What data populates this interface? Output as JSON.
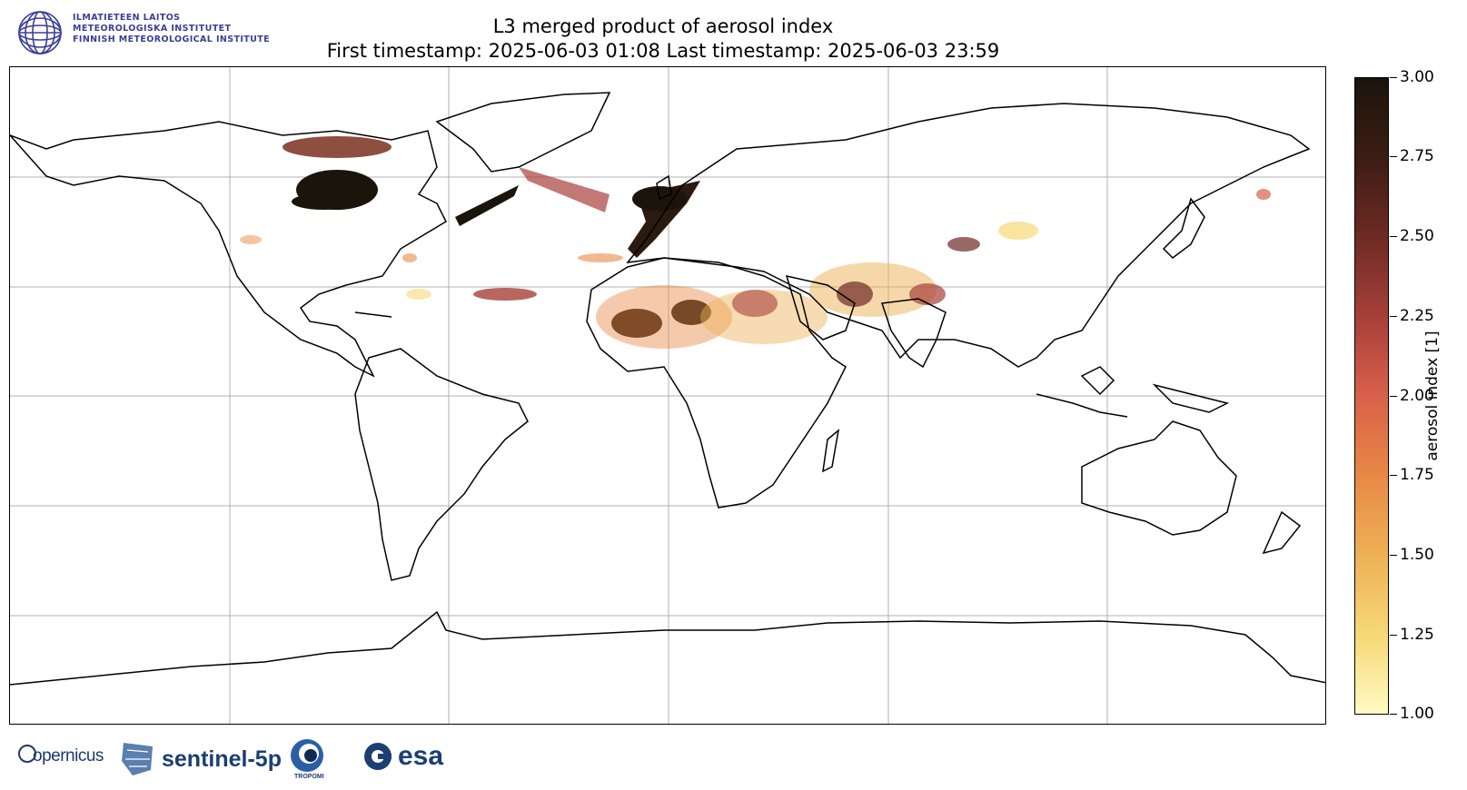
{
  "header": {
    "title_line1": "L3 merged product of aerosol index",
    "title_line2": "First timestamp: 2025-06-03 01:08   Last timestamp: 2025-06-03 23:59"
  },
  "institute_logo": {
    "line1": "ILMATIETEEN LAITOS",
    "line2": "METEOROLOGISKA INSTITUTET",
    "line3": "FINNISH METEOROLOGICAL INSTITUTE"
  },
  "colorbar": {
    "label": "aerosol index [1]",
    "ticks": [
      "3.00",
      "2.75",
      "2.50",
      "2.25",
      "2.00",
      "1.75",
      "1.50",
      "1.25",
      "1.00"
    ],
    "min": 1.0,
    "max": 3.0,
    "colors": [
      "#fffbc4",
      "#eeb055",
      "#d9604a",
      "#6e2a24",
      "#1a140b"
    ]
  },
  "map": {
    "projection": "Plate Carree (global)",
    "gridlines": true,
    "coastlines": true
  },
  "partner_logos": {
    "copernicus": "opernicus",
    "sentinel": "sentinel-5p",
    "tropomi": "TROPOMI",
    "esa": "esa"
  }
}
